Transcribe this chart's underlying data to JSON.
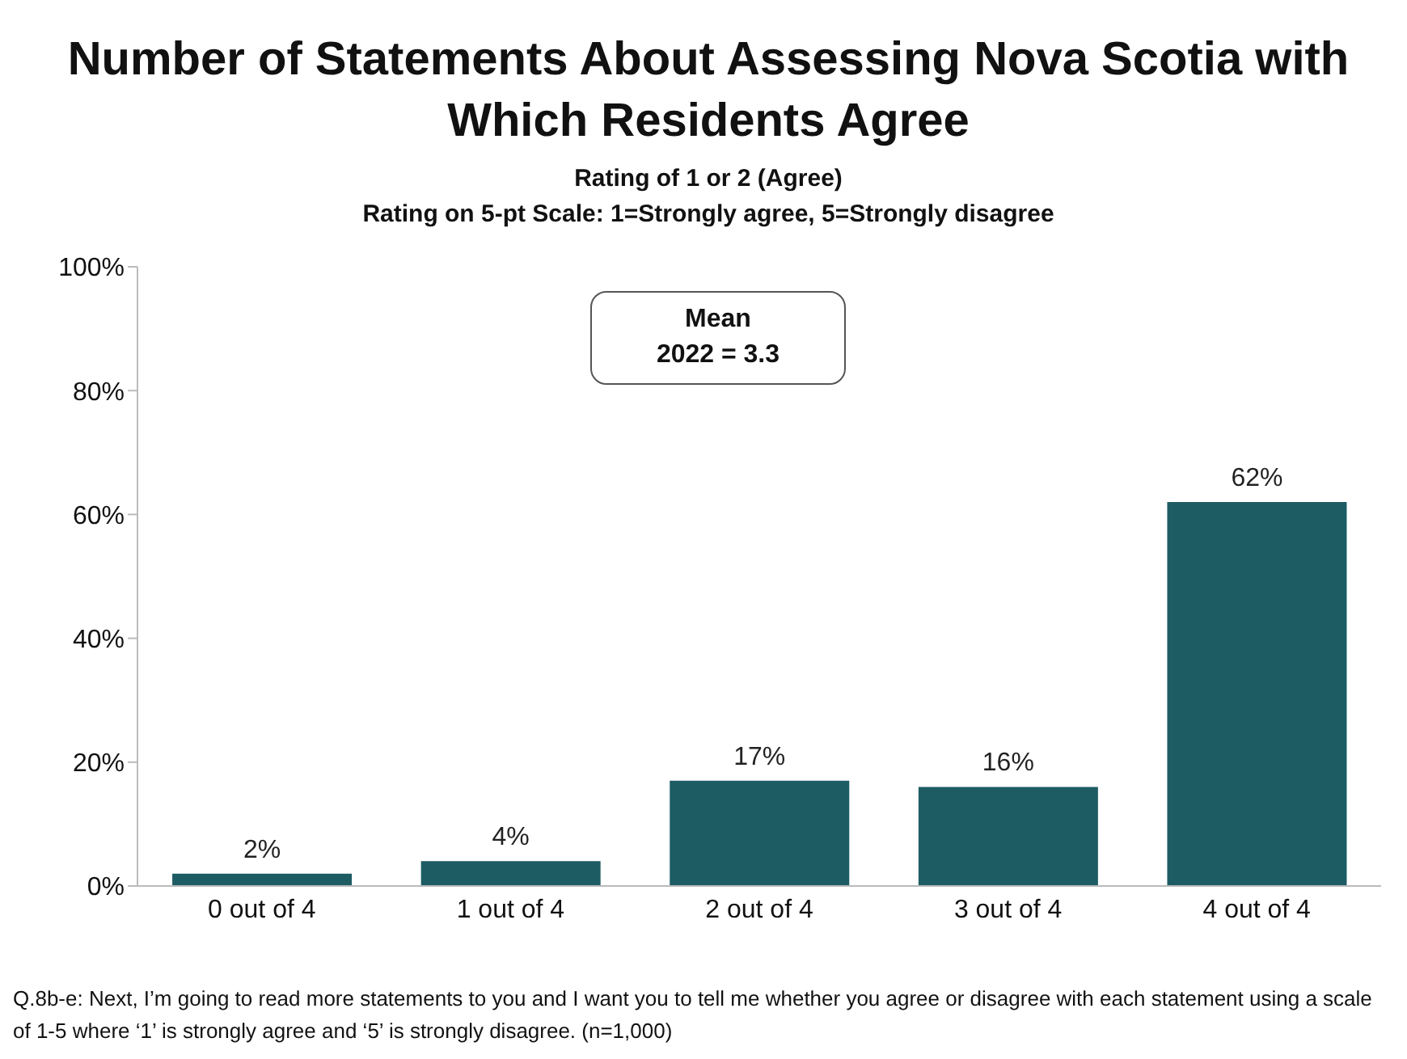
{
  "chart_data": {
    "type": "bar",
    "title": "Number of Statements About Assessing Nova Scotia with Which Residents Agree",
    "subtitle": "Rating of 1 or 2 (Agree)\nRating on 5-pt Scale: 1=Strongly agree, 5=Strongly disagree",
    "categories": [
      "0 out of 4",
      "1 out of 4",
      "2 out of 4",
      "3 out of 4",
      "4 out of 4"
    ],
    "values": [
      2,
      4,
      17,
      16,
      62
    ],
    "value_labels": [
      "2%",
      "4%",
      "17%",
      "16%",
      "62%"
    ],
    "color": "#1d5c63",
    "ylim": [
      0,
      100
    ],
    "yticks": [
      {
        "value": 0,
        "label": "0%"
      },
      {
        "value": 20,
        "label": "20%"
      },
      {
        "value": 40,
        "label": "40%"
      },
      {
        "value": 60,
        "label": "60%"
      },
      {
        "value": 80,
        "label": "80%"
      },
      {
        "value": 100,
        "label": "100%"
      }
    ],
    "grid": false,
    "legend": false,
    "annotations": [
      "Mean",
      "2022 = 3.3",
      "Q.8b-e: Next, I’m going to read more statements to you and I want you to tell me whether you agree or disagree with each statement using a scale of 1-5 where ‘1’ is strongly agree and ‘5’ is strongly disagree. (n=1,000)"
    ]
  }
}
